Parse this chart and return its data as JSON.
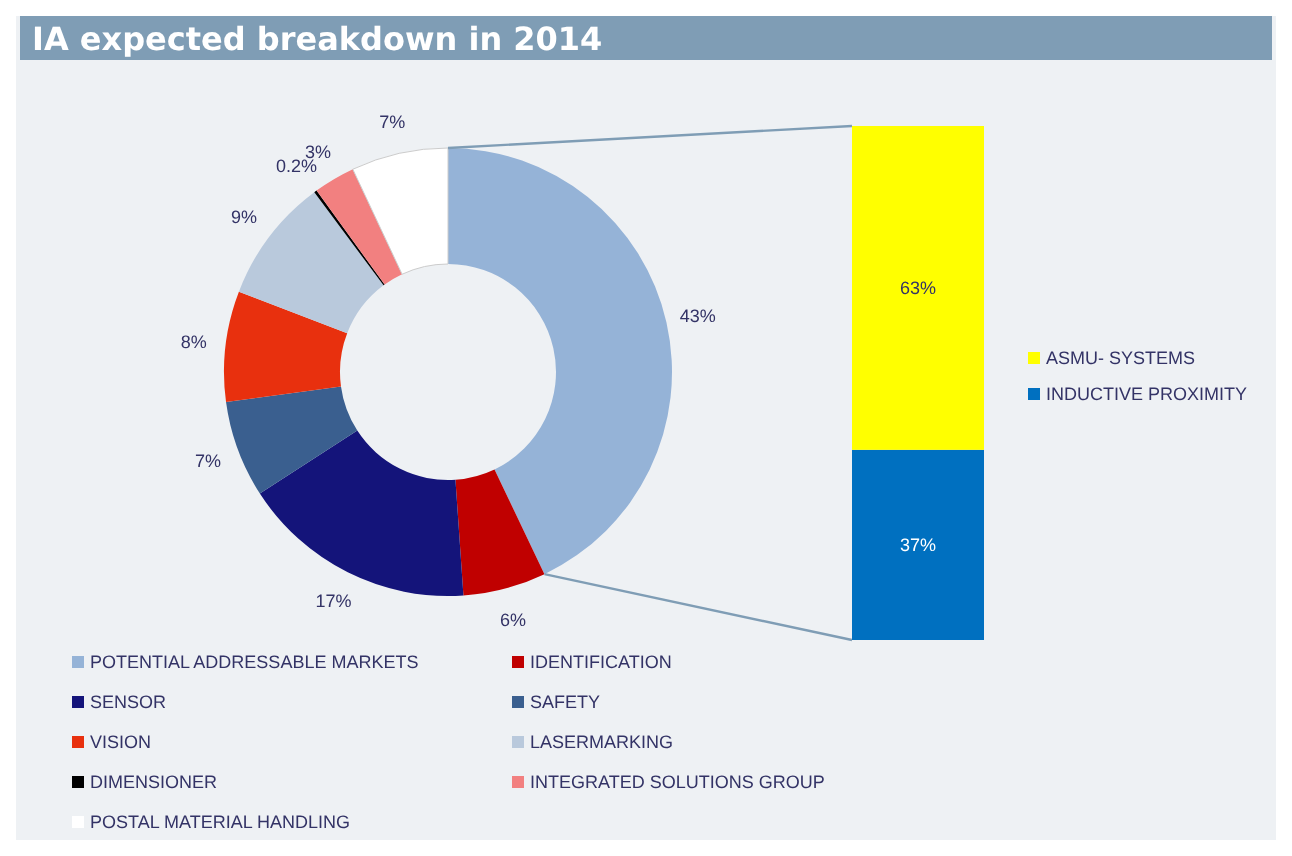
{
  "chart_data": [
    {
      "type": "donut",
      "title": "IA expected breakdown in 2014",
      "categories": [
        "POTENTIAL ADDRESSABLE MARKETS",
        "IDENTIFICATION",
        "SENSOR",
        "SAFETY",
        "VISION",
        "LASERMARKING",
        "DIMENSIONER",
        "INTEGRATED SOLUTIONS GROUP",
        "POSTAL MATERIAL HANDLING"
      ],
      "values": [
        43,
        6,
        17,
        7,
        8,
        9,
        0.2,
        3,
        7
      ],
      "value_labels": [
        "43%",
        "6%",
        "17%",
        "7%",
        "8%",
        "9%",
        "0.2%",
        "3%",
        "7%"
      ],
      "colors": [
        "#95b3d7",
        "#c00000",
        "#14147a",
        "#3a5f8f",
        "#e8300e",
        "#b9c9dc",
        "#000000",
        "#f28080",
        "#ffffff"
      ],
      "legend": "bottom"
    },
    {
      "type": "bar",
      "stacked": true,
      "categories": [
        null
      ],
      "legend": "right",
      "series": [
        {
          "name": "INDUCTIVE PROXIMITY",
          "color": "#0070c0",
          "values": [
            37
          ],
          "value_labels": [
            "37%"
          ]
        },
        {
          "name": "ASMU- SYSTEMS",
          "color": "#ffff00",
          "values": [
            63
          ],
          "value_labels": [
            "63%"
          ]
        }
      ]
    }
  ]
}
